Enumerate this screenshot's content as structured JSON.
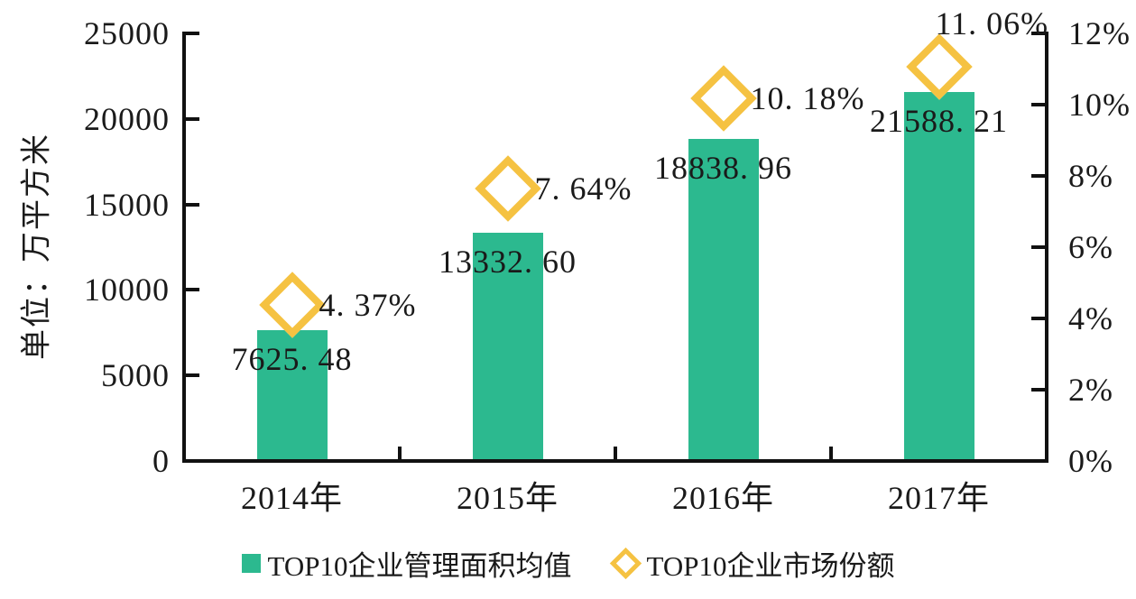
{
  "chart_data": {
    "type": "bar",
    "subtype": "combo-bar-with-diamond-markers",
    "categories": [
      "2014年",
      "2015年",
      "2016年",
      "2017年"
    ],
    "series": [
      {
        "name": "TOP10企业管理面积均值",
        "type": "bar",
        "axis": "left",
        "color": "#2cb98f",
        "values": [
          7625.48,
          13332.6,
          18838.96,
          21588.21
        ],
        "labels": [
          "7625. 48",
          "13332. 60",
          "18838. 96",
          "21588. 21"
        ]
      },
      {
        "name": "TOP10企业市场份额",
        "type": "scatter",
        "marker": "hollow-diamond",
        "axis": "right",
        "color": "#f5c242",
        "values": [
          4.37,
          7.64,
          10.18,
          11.06
        ],
        "labels": [
          "4. 37%",
          "7. 64%",
          "10. 18%",
          "11. 06%"
        ],
        "label_positions": [
          "right",
          "right",
          "right",
          "above"
        ]
      }
    ],
    "title": "",
    "xlabel": "",
    "ylabel_left": "单位：万平方米",
    "ylabel_right": "",
    "ylim_left": [
      0,
      25000
    ],
    "yticks_left": [
      "0",
      "5000",
      "10000",
      "15000",
      "20000",
      "25000"
    ],
    "ylim_right": [
      0,
      12
    ],
    "yticks_right": [
      "0%",
      "2%",
      "4%",
      "6%",
      "8%",
      "10%",
      "12%"
    ],
    "grid": false,
    "tick_direction": "in",
    "legend_position": "bottom",
    "axis_color": "#111111",
    "text_color": "#1a1a1a",
    "background_color": "#ffffff"
  }
}
